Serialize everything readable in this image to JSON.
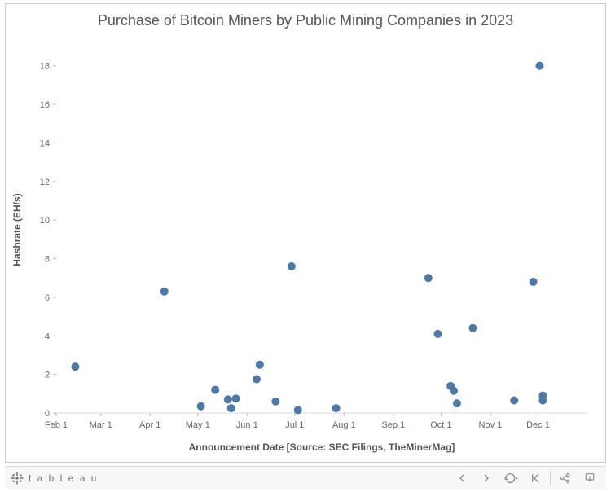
{
  "chart": {
    "type": "scatter",
    "title": "Purchase of Bitcoin Miners by Public Mining Companies in 2023",
    "title_fontsize": 18,
    "title_color": "#555555",
    "xlabel": "Announcement Date [Source: SEC Filings, TheMinerMag]",
    "ylabel": "Hashrate (EH/s)",
    "label_fontsize": 12,
    "label_color": "#555555",
    "background_color": "#ffffff",
    "border_color": "#cccccc",
    "grid_color": "#d8d8d8",
    "axis_color": "#b8b8b8",
    "tick_color": "#666666",
    "tick_fontsize": 11,
    "marker_color": "#4e79a7",
    "marker_radius": 5,
    "x_ticks": [
      "Feb 1",
      "Mar 1",
      "Apr 1",
      "May 1",
      "Jun 1",
      "Jul 1",
      "Aug 1",
      "Sep 1",
      "Oct 1",
      "Nov 1",
      "Dec 1"
    ],
    "x_domain_days": [
      0,
      334
    ],
    "ylim": [
      0,
      19
    ],
    "y_ticks": [
      0,
      2,
      4,
      6,
      8,
      10,
      12,
      14,
      16,
      18
    ],
    "points": [
      {
        "x": 12,
        "y": 2.4
      },
      {
        "x": 68,
        "y": 6.3
      },
      {
        "x": 91,
        "y": 0.35
      },
      {
        "x": 100,
        "y": 1.2
      },
      {
        "x": 108,
        "y": 0.7
      },
      {
        "x": 110,
        "y": 0.25
      },
      {
        "x": 113,
        "y": 0.75
      },
      {
        "x": 126,
        "y": 1.75
      },
      {
        "x": 128,
        "y": 2.5
      },
      {
        "x": 138,
        "y": 0.6
      },
      {
        "x": 148,
        "y": 7.6
      },
      {
        "x": 152,
        "y": 0.15
      },
      {
        "x": 176,
        "y": 0.25
      },
      {
        "x": 234,
        "y": 7.0
      },
      {
        "x": 240,
        "y": 4.1
      },
      {
        "x": 248,
        "y": 1.4
      },
      {
        "x": 250,
        "y": 1.15
      },
      {
        "x": 252,
        "y": 0.5
      },
      {
        "x": 262,
        "y": 4.4
      },
      {
        "x": 288,
        "y": 0.65
      },
      {
        "x": 300,
        "y": 6.8
      },
      {
        "x": 304,
        "y": 18.0
      },
      {
        "x": 306,
        "y": 0.9
      },
      {
        "x": 306,
        "y": 0.65
      }
    ]
  },
  "toolbar": {
    "logo_text": "t a b l e a u"
  }
}
